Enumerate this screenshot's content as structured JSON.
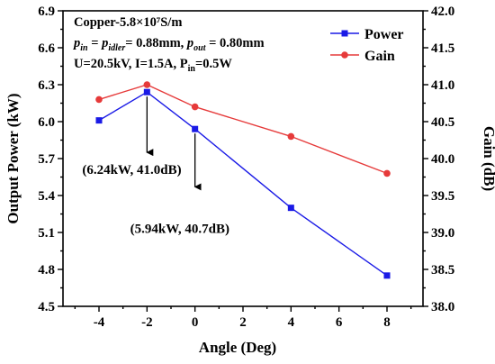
{
  "chart_data": {
    "type": "line",
    "xlabel": "Angle (Deg)",
    "ylabel_left": "Output Power (kW)",
    "ylabel_right": "Gain (dB)",
    "x": [
      -4,
      -2,
      0,
      4,
      8
    ],
    "x_ticks": [
      -4,
      -2,
      0,
      2,
      4,
      6,
      8
    ],
    "xlim": [
      -5.5,
      9.5
    ],
    "ylim_left": [
      4.5,
      6.9
    ],
    "ylim_right": [
      38.0,
      42.0
    ],
    "y_ticks_left": [
      "4.5",
      "4.8",
      "5.1",
      "5.4",
      "5.7",
      "6.0",
      "6.3",
      "6.6",
      "6.9"
    ],
    "y_ticks_right": [
      "38.0",
      "38.5",
      "39.0",
      "39.5",
      "40.0",
      "40.5",
      "41.0",
      "41.5",
      "42.0"
    ],
    "series": [
      {
        "name": "Power",
        "axis": "left",
        "color": "#1a1ae6",
        "marker": "square",
        "values": [
          6.01,
          6.24,
          5.94,
          5.3,
          4.75
        ]
      },
      {
        "name": "Gain",
        "axis": "right",
        "color": "#e63a3a",
        "marker": "circle",
        "values": [
          40.8,
          41.0,
          40.7,
          40.3,
          39.8
        ]
      }
    ],
    "annotations": [
      {
        "text": "(6.24kW, 41.0dB)",
        "x": -2,
        "y_left": 6.24,
        "arrow_to_left": 5.75
      },
      {
        "text": "(5.94kW, 40.7dB)",
        "x": 0,
        "y_left": 5.94,
        "arrow_to_left": 5.47
      }
    ],
    "parameters": {
      "line1": "Copper-5.8×10⁷S/m",
      "line2_a": "p",
      "line2_a_sub": "in",
      "line2_b": " = ",
      "line2_c": "p",
      "line2_c_sub": "idler",
      "line2_d": "= 0.88mm, ",
      "line2_e": "p",
      "line2_e_sub": "out",
      "line2_f": " = 0.80mm",
      "line3_a": "U=20.5kV, I=1.5A, P",
      "line3_sub": "in",
      "line3_b": "=0.5W"
    },
    "legend_position": "top-right",
    "grid": false
  }
}
